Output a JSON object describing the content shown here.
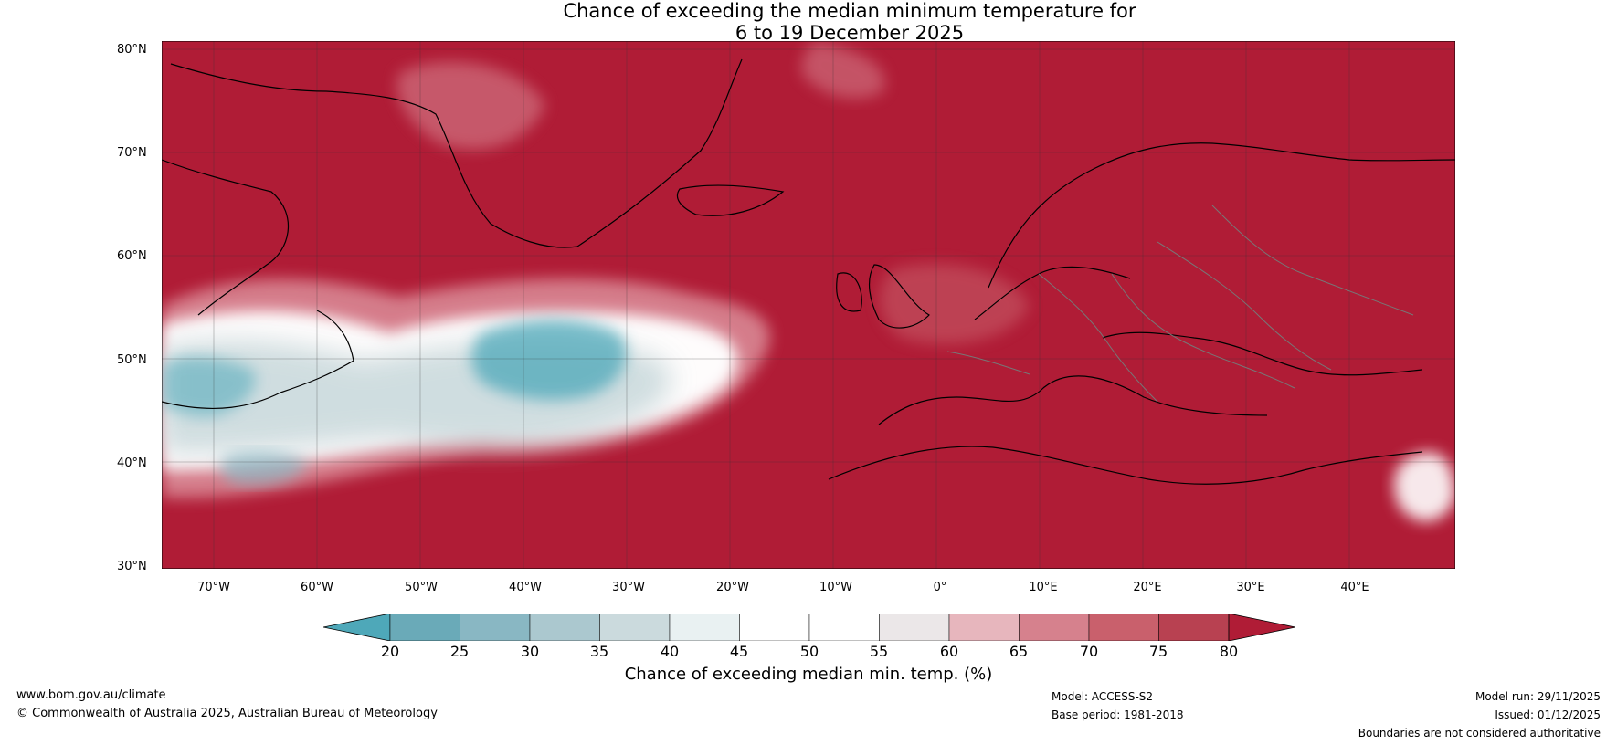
{
  "title": {
    "line1": "Chance of exceeding the median minimum temperature for",
    "line2": "6 to 19 December 2025"
  },
  "map": {
    "lat_labels": [
      "80°N",
      "70°N",
      "60°N",
      "50°N",
      "40°N",
      "30°N"
    ],
    "lon_labels": [
      "70°W",
      "60°W",
      "50°W",
      "40°W",
      "30°W",
      "20°W",
      "10°W",
      "0°",
      "10°E",
      "20°E",
      "30°E",
      "40°E"
    ],
    "colors": {
      "high_probability": "#b01c36",
      "moderate_high": "#c94a5b",
      "low_high": "#d97f8d",
      "neutral": "#f2eeee",
      "white": "#ffffff",
      "low_probability": "#4ea8b9",
      "coastline": "#000000",
      "borders": "#777777"
    }
  },
  "colorbar": {
    "ticks": [
      "20",
      "25",
      "30",
      "35",
      "40",
      "45",
      "50",
      "55",
      "60",
      "65",
      "70",
      "75",
      "80"
    ],
    "label": "Chance of exceeding median min. temp. (%)",
    "colors": [
      "#4ea8b9",
      "#6aaab8",
      "#89b7c3",
      "#abc8cf",
      "#cbdadd",
      "#e9f1f2",
      "#ffffff",
      "#ffffff",
      "#ebe7e8",
      "#e7b6bd",
      "#d6818d",
      "#c9606c",
      "#b84151",
      "#b01c36"
    ]
  },
  "footer": {
    "left_line1": "www.bom.gov.au/climate",
    "left_line2": "© Commonwealth of Australia 2025, Australian Bureau of Meteorology",
    "model": "Model: ACCESS-S2",
    "base_period": "Base period: 1981-2018",
    "model_run": "Model run: 29/11/2025",
    "issued": "Issued: 01/12/2025",
    "disclaimer": "Boundaries are not considered authoritative"
  }
}
